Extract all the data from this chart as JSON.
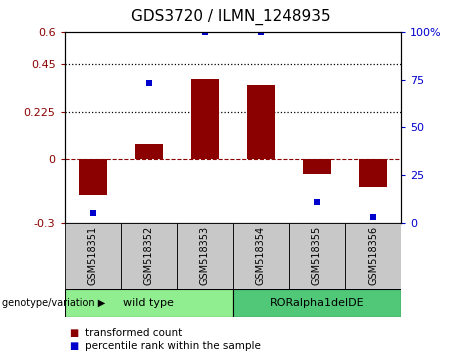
{
  "title": "GDS3720 / ILMN_1248935",
  "samples": [
    "GSM518351",
    "GSM518352",
    "GSM518353",
    "GSM518354",
    "GSM518355",
    "GSM518356"
  ],
  "red_values": [
    -0.17,
    0.07,
    0.38,
    0.35,
    -0.07,
    -0.13
  ],
  "blue_values": [
    5,
    73,
    100,
    100,
    11,
    3
  ],
  "ylim_left": [
    -0.3,
    0.6
  ],
  "ylim_right": [
    0,
    100
  ],
  "yticks_left": [
    -0.3,
    0,
    0.225,
    0.45,
    0.6
  ],
  "ytick_labels_left": [
    "-0.3",
    "0",
    "0.225",
    "0.45",
    "0.6"
  ],
  "yticks_right": [
    0,
    25,
    50,
    75,
    100
  ],
  "ytick_labels_right": [
    "0",
    "25",
    "50",
    "75",
    "100%"
  ],
  "hlines_dotted": [
    0.225,
    0.45
  ],
  "hline_dashed": 0,
  "red_color": "#8B0000",
  "blue_color": "#0000CD",
  "bar_width": 0.5,
  "groups": [
    {
      "label": "wild type",
      "indices": [
        0,
        1,
        2
      ],
      "color": "#90EE90"
    },
    {
      "label": "RORalpha1delDE",
      "indices": [
        3,
        4,
        5
      ],
      "color": "#50C878"
    }
  ],
  "group_row_label": "genotype/variation",
  "legend_red": "transformed count",
  "legend_blue": "percentile rank within the sample",
  "bg_plot": "#FFFFFF",
  "bg_sample_row": "#C8C8C8",
  "title_fontsize": 11,
  "tick_fontsize": 8,
  "sample_fontsize": 7,
  "group_fontsize": 8,
  "legend_fontsize": 7.5
}
